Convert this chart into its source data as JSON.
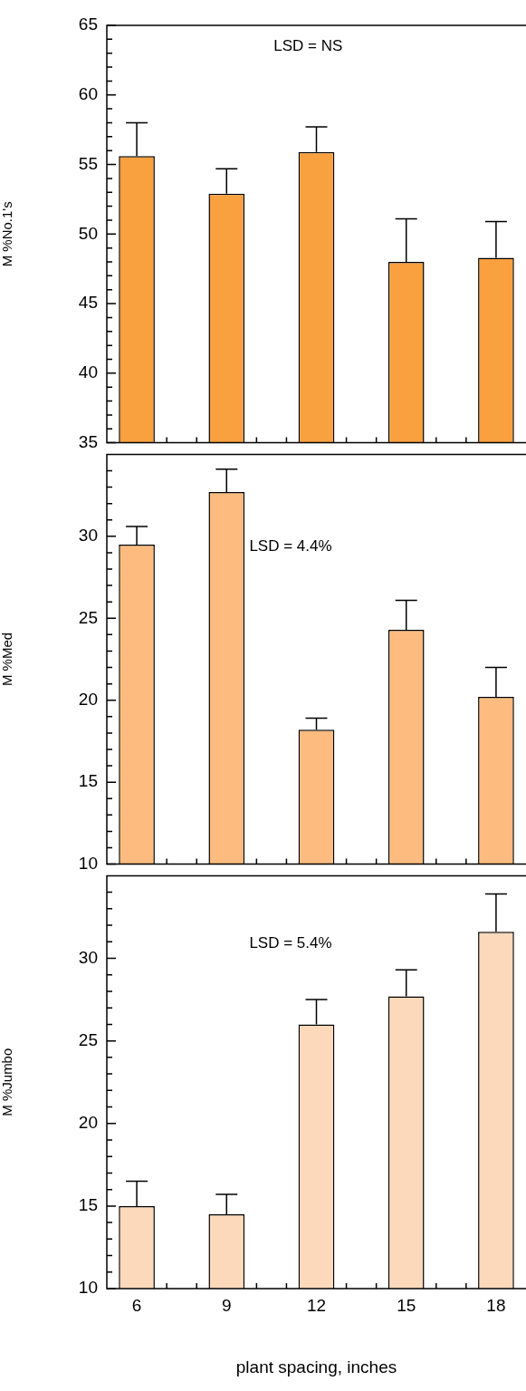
{
  "chart_data": [
    {
      "type": "bar",
      "ylabel": "M %No.1's",
      "x": [
        6,
        9,
        12,
        15,
        18
      ],
      "values": [
        55.6,
        52.9,
        55.9,
        48.0,
        48.3
      ],
      "color": "#f9a03f",
      "errors": [
        [
          55.6,
          58.0
        ],
        [
          52.9,
          54.7
        ],
        [
          55.9,
          57.7
        ],
        [
          48.0,
          51.1
        ],
        [
          48.3,
          50.9
        ]
      ],
      "annotations": [
        "LSD = NS"
      ],
      "xlim": [
        5,
        19
      ],
      "xticks": [
        {
          "value": 6,
          "label": null
        },
        {
          "value": 7,
          "label": null
        },
        {
          "value": 8,
          "label": null
        },
        {
          "value": 9,
          "label": null
        },
        {
          "value": 10,
          "label": null
        },
        {
          "value": 11,
          "label": null
        },
        {
          "value": 12,
          "label": null
        },
        {
          "value": 13,
          "label": null
        },
        {
          "value": 14,
          "label": null
        },
        {
          "value": 15,
          "label": null
        },
        {
          "value": 16,
          "label": null
        },
        {
          "value": 17,
          "label": null
        },
        {
          "value": 18,
          "label": null
        }
      ],
      "ylim": [
        35,
        65
      ],
      "yticks": [
        35,
        {
          "value": 36,
          "label": null
        },
        {
          "value": 37,
          "label": null
        },
        {
          "value": 38,
          "label": null
        },
        {
          "value": 39,
          "label": null
        },
        40,
        {
          "value": 41,
          "label": null
        },
        {
          "value": 42,
          "label": null
        },
        {
          "value": 43,
          "label": null
        },
        {
          "value": 44,
          "label": null
        },
        45,
        {
          "value": 46,
          "label": null
        },
        {
          "value": 47,
          "label": null
        },
        {
          "value": 48,
          "label": null
        },
        {
          "value": 49,
          "label": null
        },
        50,
        {
          "value": 51,
          "label": null
        },
        {
          "value": 52,
          "label": null
        },
        {
          "value": 53,
          "label": null
        },
        {
          "value": 54,
          "label": null
        },
        55,
        {
          "value": 56,
          "label": null
        },
        {
          "value": 57,
          "label": null
        },
        {
          "value": 58,
          "label": null
        },
        {
          "value": 59,
          "label": null
        },
        60,
        {
          "value": 61,
          "label": null
        },
        {
          "value": 62,
          "label": null
        },
        {
          "value": 63,
          "label": null
        },
        {
          "value": 64,
          "label": null
        },
        65
      ],
      "tick_labels": "y"
    },
    {
      "type": "bar",
      "ylabel": "M %Med",
      "x": [
        6,
        9,
        12,
        15,
        18
      ],
      "values": [
        29.5,
        32.7,
        18.2,
        24.3,
        20.2
      ],
      "color": "#fdbb7f",
      "errors": [
        [
          29.5,
          30.6
        ],
        [
          32.7,
          34.1
        ],
        [
          18.2,
          18.9
        ],
        [
          24.3,
          26.1
        ],
        [
          20.2,
          22.0
        ]
      ],
      "annotations": [
        "LSD = 4.4%"
      ],
      "xlim": [
        5,
        19
      ],
      "xticks": [
        {
          "value": 6,
          "label": null
        },
        {
          "value": 7,
          "label": null
        },
        {
          "value": 8,
          "label": null
        },
        {
          "value": 9,
          "label": null
        },
        {
          "value": 10,
          "label": null
        },
        {
          "value": 11,
          "label": null
        },
        {
          "value": 12,
          "label": null
        },
        {
          "value": 13,
          "label": null
        },
        {
          "value": 14,
          "label": null
        },
        {
          "value": 15,
          "label": null
        },
        {
          "value": 16,
          "label": null
        },
        {
          "value": 17,
          "label": null
        },
        {
          "value": 18,
          "label": null
        }
      ],
      "ylim": [
        10,
        35
      ],
      "yticks": [
        10,
        {
          "value": 11,
          "label": null
        },
        {
          "value": 12,
          "label": null
        },
        {
          "value": 13,
          "label": null
        },
        {
          "value": 14,
          "label": null
        },
        15,
        {
          "value": 16,
          "label": null
        },
        {
          "value": 17,
          "label": null
        },
        {
          "value": 18,
          "label": null
        },
        {
          "value": 19,
          "label": null
        },
        20,
        {
          "value": 21,
          "label": null
        },
        {
          "value": 22,
          "label": null
        },
        {
          "value": 23,
          "label": null
        },
        {
          "value": 24,
          "label": null
        },
        25,
        {
          "value": 26,
          "label": null
        },
        {
          "value": 27,
          "label": null
        },
        {
          "value": 28,
          "label": null
        },
        {
          "value": 29,
          "label": null
        },
        30,
        {
          "value": 31,
          "label": null
        },
        {
          "value": 32,
          "label": null
        },
        {
          "value": 33,
          "label": null
        },
        {
          "value": 34,
          "label": null
        }
      ],
      "tick_labels": "y"
    },
    {
      "type": "bar",
      "ylabel": "M %Jumbo",
      "xlabel": "plant spacing, inches",
      "x": [
        6,
        9,
        12,
        15,
        18
      ],
      "values": [
        15.0,
        14.5,
        26.0,
        27.7,
        31.6
      ],
      "color": "#fdd9bb",
      "errors": [
        [
          15.0,
          16.5
        ],
        [
          14.5,
          15.7
        ],
        [
          26.0,
          27.5
        ],
        [
          27.7,
          29.3
        ],
        [
          31.6,
          33.9
        ]
      ],
      "annotations": [
        "LSD = 5.4%"
      ],
      "xlim": [
        5,
        19
      ],
      "xticks": [
        6,
        {
          "value": 7,
          "label": null
        },
        {
          "value": 8,
          "label": null
        },
        9,
        {
          "value": 10,
          "label": null
        },
        {
          "value": 11,
          "label": null
        },
        12,
        {
          "value": 13,
          "label": null
        },
        {
          "value": 14,
          "label": null
        },
        15,
        {
          "value": 16,
          "label": null
        },
        {
          "value": 17,
          "label": null
        },
        18
      ],
      "ylim": [
        10,
        35
      ],
      "yticks": [
        10,
        {
          "value": 11,
          "label": null
        },
        {
          "value": 12,
          "label": null
        },
        {
          "value": 13,
          "label": null
        },
        {
          "value": 14,
          "label": null
        },
        15,
        {
          "value": 16,
          "label": null
        },
        {
          "value": 17,
          "label": null
        },
        {
          "value": 18,
          "label": null
        },
        {
          "value": 19,
          "label": null
        },
        20,
        {
          "value": 21,
          "label": null
        },
        {
          "value": 22,
          "label": null
        },
        {
          "value": 23,
          "label": null
        },
        {
          "value": 24,
          "label": null
        },
        25,
        {
          "value": 26,
          "label": null
        },
        {
          "value": 27,
          "label": null
        },
        {
          "value": 28,
          "label": null
        },
        {
          "value": 29,
          "label": null
        },
        30,
        {
          "value": 31,
          "label": null
        },
        {
          "value": 32,
          "label": null
        },
        {
          "value": 33,
          "label": null
        },
        {
          "value": 34,
          "label": null
        }
      ]
    }
  ]
}
